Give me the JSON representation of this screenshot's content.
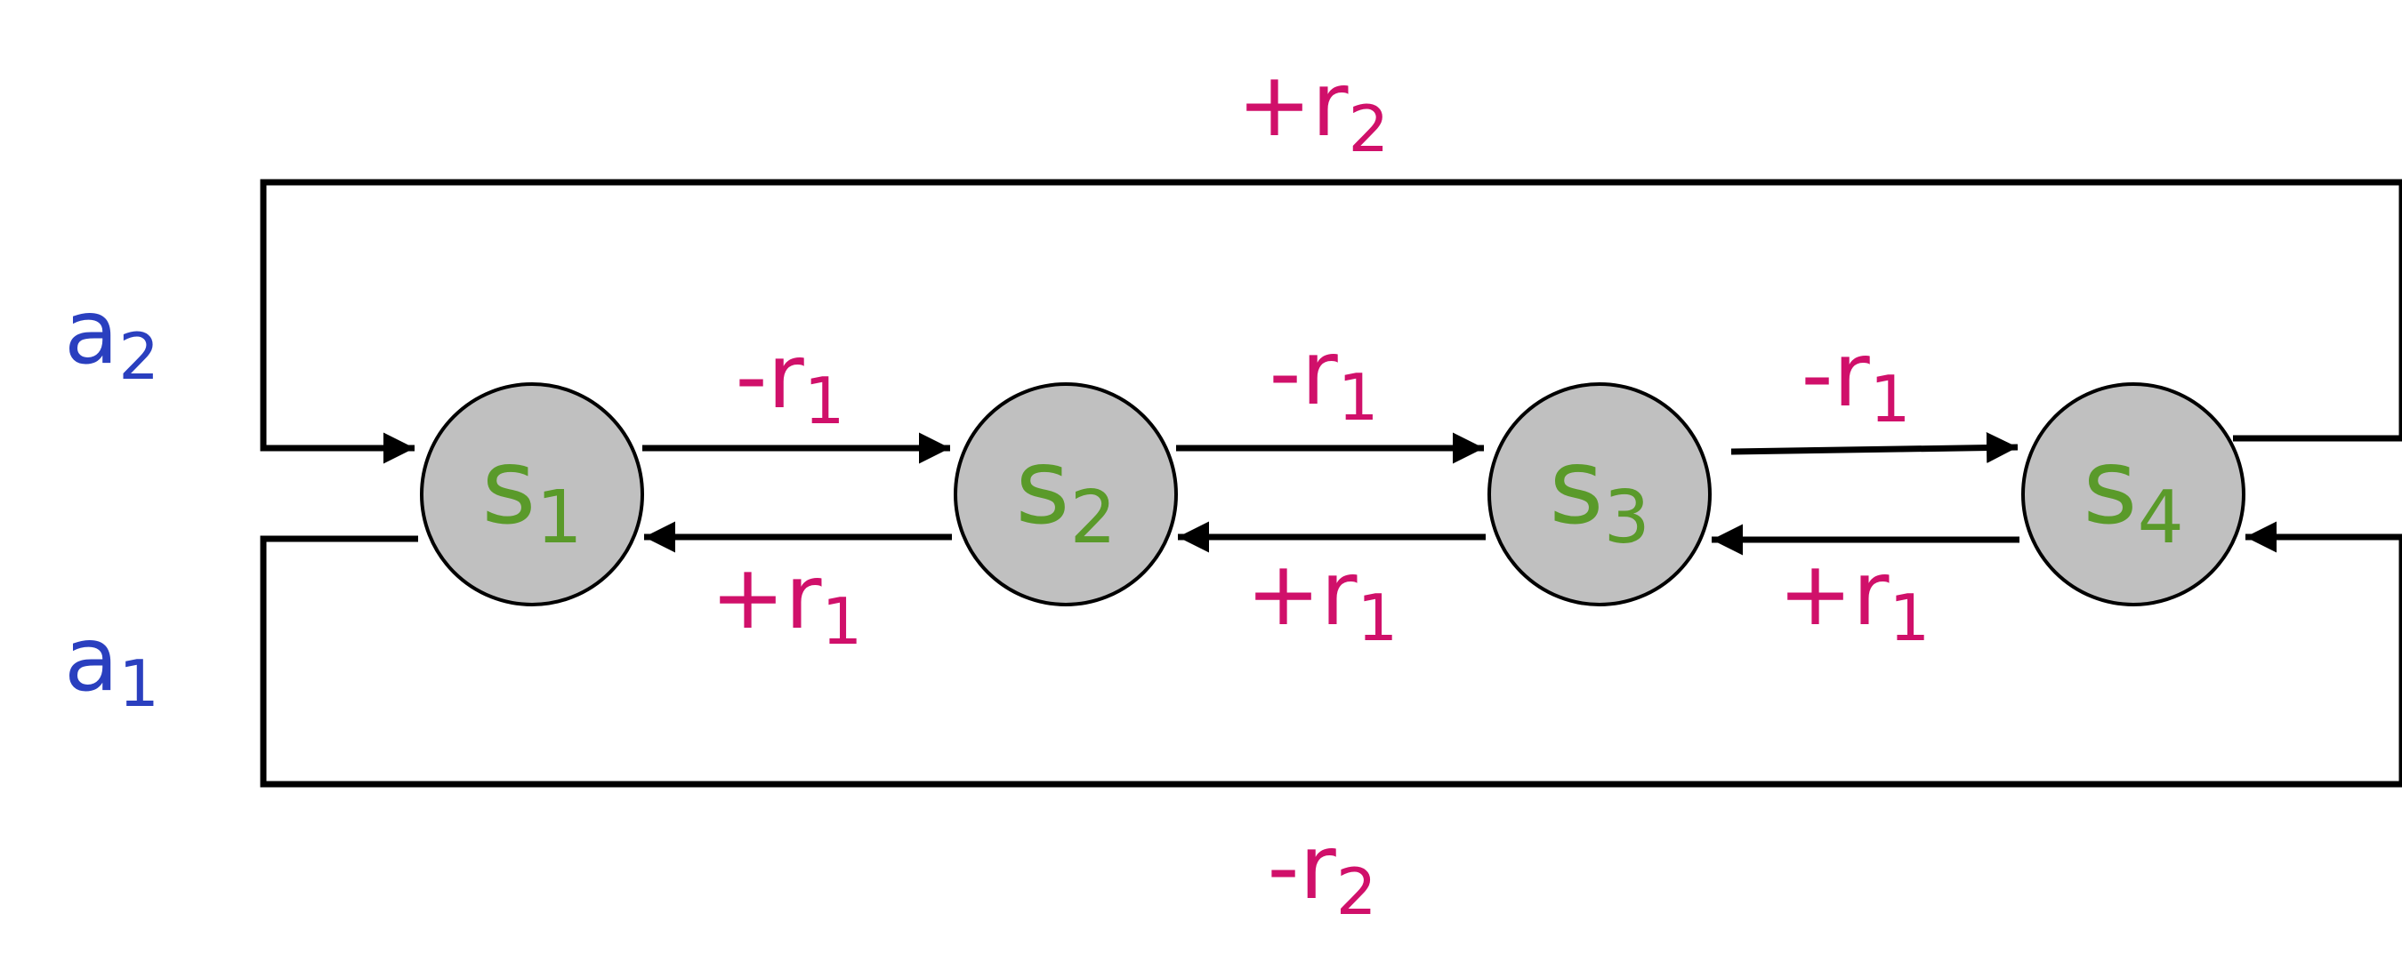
{
  "colors": {
    "state_fill": "#c0c0c0",
    "state_text": "#5a9a2a",
    "reward_text": "#d0106a",
    "action_text": "#2a3fbf",
    "line": "#000000"
  },
  "states": [
    {
      "base": "s",
      "sub": "1"
    },
    {
      "base": "s",
      "sub": "2"
    },
    {
      "base": "s",
      "sub": "3"
    },
    {
      "base": "s",
      "sub": "4"
    }
  ],
  "actions": {
    "a2": {
      "base": "a",
      "sub": "2"
    },
    "a1": {
      "base": "a",
      "sub": "1"
    }
  },
  "rewards": {
    "forward": [
      {
        "base": "-r",
        "sub": "1"
      },
      {
        "base": "-r",
        "sub": "1"
      },
      {
        "base": "-r",
        "sub": "1"
      }
    ],
    "backward": [
      {
        "base": "+r",
        "sub": "1"
      },
      {
        "base": "+r",
        "sub": "1"
      },
      {
        "base": "+r",
        "sub": "1"
      }
    ],
    "top_loop": {
      "base": "+r",
      "sub": "2"
    },
    "bottom_loop": {
      "base": "-r",
      "sub": "2"
    }
  }
}
